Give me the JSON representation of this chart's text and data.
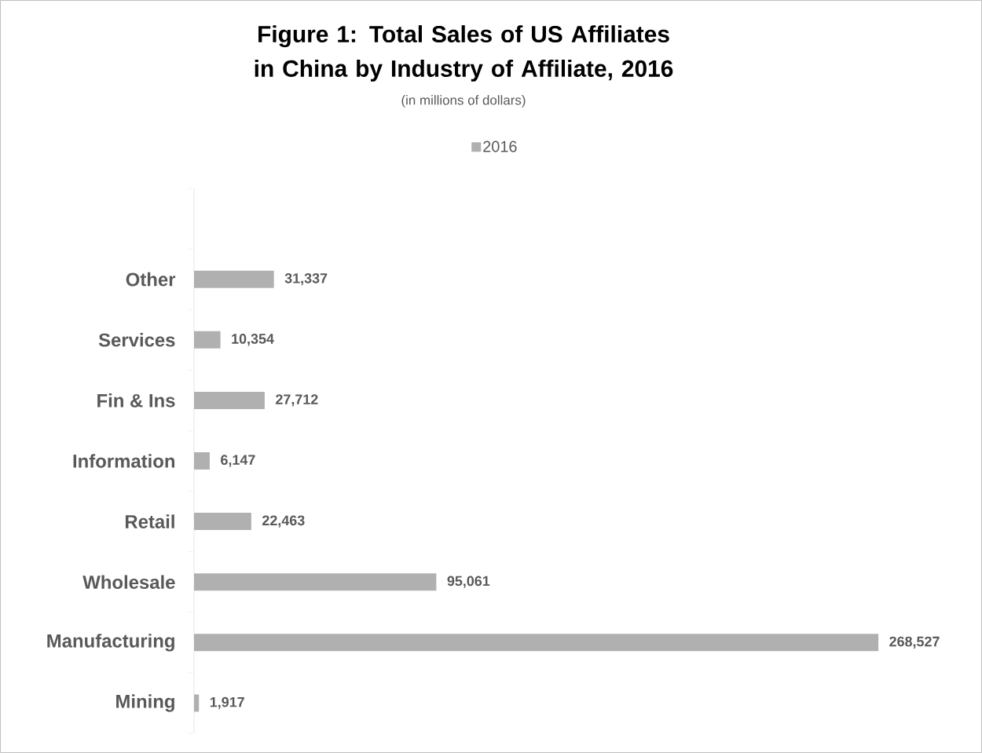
{
  "chart_data": {
    "type": "bar",
    "orientation": "horizontal",
    "title": "Figure 1: Total Sales of US Affiliates in China by Industry of Affiliate, 2016",
    "subtitle": "(in millions of dollars)",
    "categories": [
      null,
      "Other",
      "Services",
      "Fin & Ins",
      "Information",
      "Retail",
      "Wholesale",
      "Manufacturing",
      "Mining"
    ],
    "series": [
      {
        "name": "2016",
        "color": "#b0b0b0",
        "values": [
          null,
          31337,
          10354,
          27712,
          6147,
          22463,
          95061,
          268527,
          1917
        ],
        "value_labels": [
          null,
          "31,337",
          "10,354",
          "27,712",
          "6,147",
          "22,463",
          "95,061",
          "268,527",
          "1,917"
        ]
      }
    ],
    "tick_labels": "y",
    "legend": "top"
  }
}
